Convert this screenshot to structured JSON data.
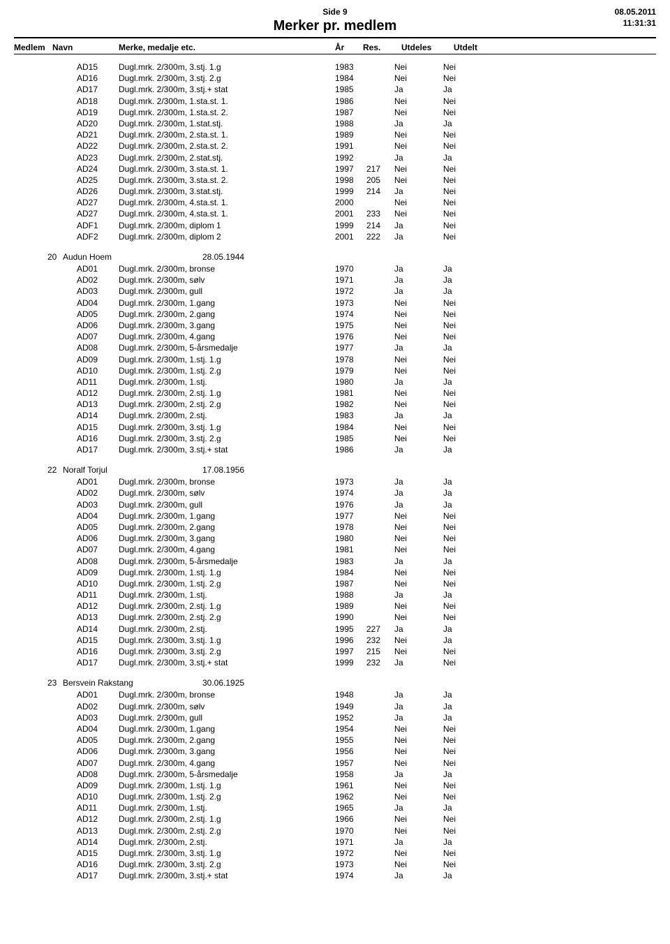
{
  "header": {
    "side": "Side 9",
    "title": "Merker pr. medlem",
    "date": "08.05.2011",
    "time": "11:31:31"
  },
  "columns": {
    "medlem": "Medlem",
    "navn": "Navn",
    "merke": "Merke, medalje etc.",
    "ar": "År",
    "res": "Res.",
    "utdeles": "Utdeles",
    "utdelt": "Utdelt"
  },
  "groups": [
    {
      "num": "",
      "name": "",
      "date": "",
      "show_header": false,
      "rows": [
        {
          "code": "AD15",
          "merke": "Dugl.mrk. 2/300m, 3.stj. 1.g",
          "ar": "1983",
          "res": "",
          "utdeles": "Nei",
          "utdelt": "Nei"
        },
        {
          "code": "AD16",
          "merke": "Dugl.mrk. 2/300m, 3.stj. 2.g",
          "ar": "1984",
          "res": "",
          "utdeles": "Nei",
          "utdelt": "Nei"
        },
        {
          "code": "AD17",
          "merke": "Dugl.mrk. 2/300m, 3.stj.+ stat",
          "ar": "1985",
          "res": "",
          "utdeles": "Ja",
          "utdelt": "Ja"
        },
        {
          "code": "AD18",
          "merke": "Dugl.mrk. 2/300m, 1.sta.st. 1.",
          "ar": "1986",
          "res": "",
          "utdeles": "Nei",
          "utdelt": "Nei"
        },
        {
          "code": "AD19",
          "merke": "Dugl.mrk. 2/300m, 1.sta.st. 2.",
          "ar": "1987",
          "res": "",
          "utdeles": "Nei",
          "utdelt": "Nei"
        },
        {
          "code": "AD20",
          "merke": "Dugl.mrk. 2/300m, 1.stat.stj.",
          "ar": "1988",
          "res": "",
          "utdeles": "Ja",
          "utdelt": "Ja"
        },
        {
          "code": "AD21",
          "merke": "Dugl.mrk. 2/300m, 2.sta.st. 1.",
          "ar": "1989",
          "res": "",
          "utdeles": "Nei",
          "utdelt": "Nei"
        },
        {
          "code": "AD22",
          "merke": "Dugl.mrk. 2/300m, 2.sta.st. 2.",
          "ar": "1991",
          "res": "",
          "utdeles": "Nei",
          "utdelt": "Nei"
        },
        {
          "code": "AD23",
          "merke": "Dugl.mrk. 2/300m, 2.stat.stj.",
          "ar": "1992",
          "res": "",
          "utdeles": "Ja",
          "utdelt": "Ja"
        },
        {
          "code": "AD24",
          "merke": "Dugl.mrk. 2/300m, 3.sta.st. 1.",
          "ar": "1997",
          "res": "217",
          "utdeles": "Nei",
          "utdelt": "Nei"
        },
        {
          "code": "AD25",
          "merke": "Dugl.mrk. 2/300m, 3.sta.st. 2.",
          "ar": "1998",
          "res": "205",
          "utdeles": "Nei",
          "utdelt": "Nei"
        },
        {
          "code": "AD26",
          "merke": "Dugl.mrk. 2/300m, 3.stat.stj.",
          "ar": "1999",
          "res": "214",
          "utdeles": "Ja",
          "utdelt": "Nei"
        },
        {
          "code": "AD27",
          "merke": "Dugl.mrk. 2/300m, 4.sta.st. 1.",
          "ar": "2000",
          "res": "",
          "utdeles": "Nei",
          "utdelt": "Nei"
        },
        {
          "code": "AD27",
          "merke": "Dugl.mrk. 2/300m, 4.sta.st. 1.",
          "ar": "2001",
          "res": "233",
          "utdeles": "Nei",
          "utdelt": "Nei"
        },
        {
          "code": "ADF1",
          "merke": "Dugl.mrk. 2/300m, diplom 1",
          "ar": "1999",
          "res": "214",
          "utdeles": "Ja",
          "utdelt": "Nei"
        },
        {
          "code": "ADF2",
          "merke": "Dugl.mrk. 2/300m, diplom 2",
          "ar": "2001",
          "res": "222",
          "utdeles": "Ja",
          "utdelt": "Nei"
        }
      ]
    },
    {
      "num": "20",
      "name": "Audun Hoem",
      "date": "28.05.1944",
      "show_header": true,
      "rows": [
        {
          "code": "AD01",
          "merke": "Dugl.mrk. 2/300m, bronse",
          "ar": "1970",
          "res": "",
          "utdeles": "Ja",
          "utdelt": "Ja"
        },
        {
          "code": "AD02",
          "merke": "Dugl.mrk. 2/300m, sølv",
          "ar": "1971",
          "res": "",
          "utdeles": "Ja",
          "utdelt": "Ja"
        },
        {
          "code": "AD03",
          "merke": "Dugl.mrk. 2/300m, gull",
          "ar": "1972",
          "res": "",
          "utdeles": "Ja",
          "utdelt": "Ja"
        },
        {
          "code": "AD04",
          "merke": "Dugl.mrk. 2/300m, 1.gang",
          "ar": "1973",
          "res": "",
          "utdeles": "Nei",
          "utdelt": "Nei"
        },
        {
          "code": "AD05",
          "merke": "Dugl.mrk. 2/300m, 2.gang",
          "ar": "1974",
          "res": "",
          "utdeles": "Nei",
          "utdelt": "Nei"
        },
        {
          "code": "AD06",
          "merke": "Dugl.mrk. 2/300m, 3.gang",
          "ar": "1975",
          "res": "",
          "utdeles": "Nei",
          "utdelt": "Nei"
        },
        {
          "code": "AD07",
          "merke": "Dugl.mrk. 2/300m, 4.gang",
          "ar": "1976",
          "res": "",
          "utdeles": "Nei",
          "utdelt": "Nei"
        },
        {
          "code": "AD08",
          "merke": "Dugl.mrk. 2/300m, 5-årsmedalje",
          "ar": "1977",
          "res": "",
          "utdeles": "Ja",
          "utdelt": "Ja"
        },
        {
          "code": "AD09",
          "merke": "Dugl.mrk. 2/300m, 1.stj. 1.g",
          "ar": "1978",
          "res": "",
          "utdeles": "Nei",
          "utdelt": "Nei"
        },
        {
          "code": "AD10",
          "merke": "Dugl.mrk. 2/300m, 1.stj. 2.g",
          "ar": "1979",
          "res": "",
          "utdeles": "Nei",
          "utdelt": "Nei"
        },
        {
          "code": "AD11",
          "merke": "Dugl.mrk. 2/300m, 1.stj.",
          "ar": "1980",
          "res": "",
          "utdeles": "Ja",
          "utdelt": "Ja"
        },
        {
          "code": "AD12",
          "merke": "Dugl.mrk. 2/300m, 2.stj. 1.g",
          "ar": "1981",
          "res": "",
          "utdeles": "Nei",
          "utdelt": "Nei"
        },
        {
          "code": "AD13",
          "merke": "Dugl.mrk. 2/300m, 2.stj. 2.g",
          "ar": "1982",
          "res": "",
          "utdeles": "Nei",
          "utdelt": "Nei"
        },
        {
          "code": "AD14",
          "merke": "Dugl.mrk. 2/300m, 2.stj.",
          "ar": "1983",
          "res": "",
          "utdeles": "Ja",
          "utdelt": "Ja"
        },
        {
          "code": "AD15",
          "merke": "Dugl.mrk. 2/300m, 3.stj. 1.g",
          "ar": "1984",
          "res": "",
          "utdeles": "Nei",
          "utdelt": "Nei"
        },
        {
          "code": "AD16",
          "merke": "Dugl.mrk. 2/300m, 3.stj. 2.g",
          "ar": "1985",
          "res": "",
          "utdeles": "Nei",
          "utdelt": "Nei"
        },
        {
          "code": "AD17",
          "merke": "Dugl.mrk. 2/300m, 3.stj.+ stat",
          "ar": "1986",
          "res": "",
          "utdeles": "Ja",
          "utdelt": "Ja"
        }
      ]
    },
    {
      "num": "22",
      "name": "Noralf Torjul",
      "date": "17.08.1956",
      "show_header": true,
      "rows": [
        {
          "code": "AD01",
          "merke": "Dugl.mrk. 2/300m, bronse",
          "ar": "1973",
          "res": "",
          "utdeles": "Ja",
          "utdelt": "Ja"
        },
        {
          "code": "AD02",
          "merke": "Dugl.mrk. 2/300m, sølv",
          "ar": "1974",
          "res": "",
          "utdeles": "Ja",
          "utdelt": "Ja"
        },
        {
          "code": "AD03",
          "merke": "Dugl.mrk. 2/300m, gull",
          "ar": "1976",
          "res": "",
          "utdeles": "Ja",
          "utdelt": "Ja"
        },
        {
          "code": "AD04",
          "merke": "Dugl.mrk. 2/300m, 1.gang",
          "ar": "1977",
          "res": "",
          "utdeles": "Nei",
          "utdelt": "Nei"
        },
        {
          "code": "AD05",
          "merke": "Dugl.mrk. 2/300m, 2.gang",
          "ar": "1978",
          "res": "",
          "utdeles": "Nei",
          "utdelt": "Nei"
        },
        {
          "code": "AD06",
          "merke": "Dugl.mrk. 2/300m, 3.gang",
          "ar": "1980",
          "res": "",
          "utdeles": "Nei",
          "utdelt": "Nei"
        },
        {
          "code": "AD07",
          "merke": "Dugl.mrk. 2/300m, 4.gang",
          "ar": "1981",
          "res": "",
          "utdeles": "Nei",
          "utdelt": "Nei"
        },
        {
          "code": "AD08",
          "merke": "Dugl.mrk. 2/300m, 5-årsmedalje",
          "ar": "1983",
          "res": "",
          "utdeles": "Ja",
          "utdelt": "Ja"
        },
        {
          "code": "AD09",
          "merke": "Dugl.mrk. 2/300m, 1.stj. 1.g",
          "ar": "1984",
          "res": "",
          "utdeles": "Nei",
          "utdelt": "Nei"
        },
        {
          "code": "AD10",
          "merke": "Dugl.mrk. 2/300m, 1.stj. 2.g",
          "ar": "1987",
          "res": "",
          "utdeles": "Nei",
          "utdelt": "Nei"
        },
        {
          "code": "AD11",
          "merke": "Dugl.mrk. 2/300m, 1.stj.",
          "ar": "1988",
          "res": "",
          "utdeles": "Ja",
          "utdelt": "Ja"
        },
        {
          "code": "AD12",
          "merke": "Dugl.mrk. 2/300m, 2.stj. 1.g",
          "ar": "1989",
          "res": "",
          "utdeles": "Nei",
          "utdelt": "Nei"
        },
        {
          "code": "AD13",
          "merke": "Dugl.mrk. 2/300m, 2.stj. 2.g",
          "ar": "1990",
          "res": "",
          "utdeles": "Nei",
          "utdelt": "Nei"
        },
        {
          "code": "AD14",
          "merke": "Dugl.mrk. 2/300m, 2.stj.",
          "ar": "1995",
          "res": "227",
          "utdeles": "Ja",
          "utdelt": "Ja"
        },
        {
          "code": "AD15",
          "merke": "Dugl.mrk. 2/300m, 3.stj. 1.g",
          "ar": "1996",
          "res": "232",
          "utdeles": "Nei",
          "utdelt": "Ja"
        },
        {
          "code": "AD16",
          "merke": "Dugl.mrk. 2/300m, 3.stj. 2.g",
          "ar": "1997",
          "res": "215",
          "utdeles": "Nei",
          "utdelt": "Nei"
        },
        {
          "code": "AD17",
          "merke": "Dugl.mrk. 2/300m, 3.stj.+ stat",
          "ar": "1999",
          "res": "232",
          "utdeles": "Ja",
          "utdelt": "Nei"
        }
      ]
    },
    {
      "num": "23",
      "name": "Bersvein Rakstang",
      "date": "30.06.1925",
      "show_header": true,
      "rows": [
        {
          "code": "AD01",
          "merke": "Dugl.mrk. 2/300m, bronse",
          "ar": "1948",
          "res": "",
          "utdeles": "Ja",
          "utdelt": "Ja"
        },
        {
          "code": "AD02",
          "merke": "Dugl.mrk. 2/300m, sølv",
          "ar": "1949",
          "res": "",
          "utdeles": "Ja",
          "utdelt": "Ja"
        },
        {
          "code": "AD03",
          "merke": "Dugl.mrk. 2/300m, gull",
          "ar": "1952",
          "res": "",
          "utdeles": "Ja",
          "utdelt": "Ja"
        },
        {
          "code": "AD04",
          "merke": "Dugl.mrk. 2/300m, 1.gang",
          "ar": "1954",
          "res": "",
          "utdeles": "Nei",
          "utdelt": "Nei"
        },
        {
          "code": "AD05",
          "merke": "Dugl.mrk. 2/300m, 2.gang",
          "ar": "1955",
          "res": "",
          "utdeles": "Nei",
          "utdelt": "Nei"
        },
        {
          "code": "AD06",
          "merke": "Dugl.mrk. 2/300m, 3.gang",
          "ar": "1956",
          "res": "",
          "utdeles": "Nei",
          "utdelt": "Nei"
        },
        {
          "code": "AD07",
          "merke": "Dugl.mrk. 2/300m, 4.gang",
          "ar": "1957",
          "res": "",
          "utdeles": "Nei",
          "utdelt": "Nei"
        },
        {
          "code": "AD08",
          "merke": "Dugl.mrk. 2/300m, 5-årsmedalje",
          "ar": "1958",
          "res": "",
          "utdeles": "Ja",
          "utdelt": "Ja"
        },
        {
          "code": "AD09",
          "merke": "Dugl.mrk. 2/300m, 1.stj. 1.g",
          "ar": "1961",
          "res": "",
          "utdeles": "Nei",
          "utdelt": "Nei"
        },
        {
          "code": "AD10",
          "merke": "Dugl.mrk. 2/300m, 1.stj. 2.g",
          "ar": "1962",
          "res": "",
          "utdeles": "Nei",
          "utdelt": "Nei"
        },
        {
          "code": "AD11",
          "merke": "Dugl.mrk. 2/300m, 1.stj.",
          "ar": "1965",
          "res": "",
          "utdeles": "Ja",
          "utdelt": "Ja"
        },
        {
          "code": "AD12",
          "merke": "Dugl.mrk. 2/300m, 2.stj. 1.g",
          "ar": "1966",
          "res": "",
          "utdeles": "Nei",
          "utdelt": "Nei"
        },
        {
          "code": "AD13",
          "merke": "Dugl.mrk. 2/300m, 2.stj. 2.g",
          "ar": "1970",
          "res": "",
          "utdeles": "Nei",
          "utdelt": "Nei"
        },
        {
          "code": "AD14",
          "merke": "Dugl.mrk. 2/300m, 2.stj.",
          "ar": "1971",
          "res": "",
          "utdeles": "Ja",
          "utdelt": "Ja"
        },
        {
          "code": "AD15",
          "merke": "Dugl.mrk. 2/300m, 3.stj. 1.g",
          "ar": "1972",
          "res": "",
          "utdeles": "Nei",
          "utdelt": "Nei"
        },
        {
          "code": "AD16",
          "merke": "Dugl.mrk. 2/300m, 3.stj. 2.g",
          "ar": "1973",
          "res": "",
          "utdeles": "Nei",
          "utdelt": "Nei"
        },
        {
          "code": "AD17",
          "merke": "Dugl.mrk. 2/300m, 3.stj.+ stat",
          "ar": "1974",
          "res": "",
          "utdeles": "Ja",
          "utdelt": "Ja"
        }
      ]
    }
  ]
}
